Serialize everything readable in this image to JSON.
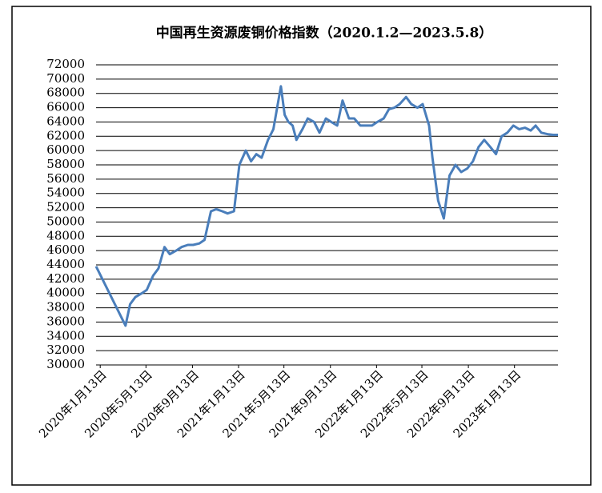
{
  "chart_data": {
    "type": "line",
    "title": "中国再生资源废铜价格指数（2020.1.2—2023.5.8）",
    "x": [
      "2020-01-02",
      "2020-03-20",
      "2020-04-01",
      "2020-04-15",
      "2020-05-01",
      "2020-05-15",
      "2020-06-01",
      "2020-06-15",
      "2020-07-01",
      "2020-07-15",
      "2020-08-01",
      "2020-08-15",
      "2020-09-01",
      "2020-09-15",
      "2020-10-01",
      "2020-10-15",
      "2020-11-01",
      "2020-11-15",
      "2020-12-01",
      "2020-12-15",
      "2021-01-01",
      "2021-01-15",
      "2021-02-01",
      "2021-02-15",
      "2021-03-01",
      "2021-03-15",
      "2021-04-01",
      "2021-04-15",
      "2021-05-05",
      "2021-05-15",
      "2021-05-25",
      "2021-06-05",
      "2021-06-15",
      "2021-07-01",
      "2021-07-15",
      "2021-08-01",
      "2021-08-15",
      "2021-09-01",
      "2021-09-15",
      "2021-10-01",
      "2021-10-15",
      "2021-11-01",
      "2021-11-15",
      "2021-12-01",
      "2021-12-15",
      "2022-01-01",
      "2022-01-15",
      "2022-02-01",
      "2022-02-15",
      "2022-03-01",
      "2022-03-15",
      "2022-04-01",
      "2022-04-15",
      "2022-05-01",
      "2022-05-15",
      "2022-06-01",
      "2022-06-10",
      "2022-06-25",
      "2022-07-10",
      "2022-07-25",
      "2022-08-10",
      "2022-08-25",
      "2022-09-10",
      "2022-09-25",
      "2022-10-10",
      "2022-10-25",
      "2022-11-10",
      "2022-11-25",
      "2022-12-10",
      "2022-12-25",
      "2023-01-10",
      "2023-01-25",
      "2023-02-10",
      "2023-02-25",
      "2023-03-10",
      "2023-03-25",
      "2023-04-10",
      "2023-04-25",
      "2023-05-08"
    ],
    "series": [
      {
        "name": "废铜价格指数",
        "color": "#4a7ebb",
        "values": [
          43800,
          35500,
          38500,
          39500,
          40000,
          40500,
          42500,
          43500,
          46500,
          45500,
          46000,
          46500,
          46800,
          46800,
          47000,
          47500,
          51500,
          51800,
          51500,
          51200,
          51500,
          58000,
          60000,
          58500,
          59500,
          59000,
          61500,
          63000,
          69000,
          65000,
          64000,
          63500,
          61500,
          63000,
          64500,
          64000,
          62500,
          64500,
          64000,
          63500,
          67000,
          64500,
          64500,
          63500,
          63500,
          63500,
          64000,
          64500,
          65800,
          66000,
          66500,
          67500,
          66500,
          66000,
          66500,
          63500,
          59000,
          53000,
          50500,
          56500,
          58000,
          57000,
          57500,
          58500,
          60500,
          61500,
          60500,
          59500,
          62000,
          62500,
          63500,
          63000,
          63200,
          62800,
          63500,
          62500,
          62300,
          62200,
          62200
        ]
      }
    ],
    "xlim": [
      "2020-01-02",
      "2023-05-08"
    ],
    "xticks": [
      {
        "value": "2020-01-13",
        "label": "2020年1月13日"
      },
      {
        "value": "2020-05-13",
        "label": "2020年5月13日"
      },
      {
        "value": "2020-09-13",
        "label": "2020年9月13日"
      },
      {
        "value": "2021-01-13",
        "label": "2021年1月13日"
      },
      {
        "value": "2021-05-13",
        "label": "2021年5月13日"
      },
      {
        "value": "2021-09-13",
        "label": "2021年9月13日"
      },
      {
        "value": "2022-01-13",
        "label": "2022年1月13日"
      },
      {
        "value": "2022-05-13",
        "label": "2022年5月13日"
      },
      {
        "value": "2022-09-13",
        "label": "2022年9月13日"
      },
      {
        "value": "2023-01-13",
        "label": "2023年1月13日"
      }
    ],
    "ylim": [
      30000,
      72000
    ],
    "yticks": [
      30000,
      32000,
      34000,
      36000,
      38000,
      40000,
      42000,
      44000,
      46000,
      48000,
      50000,
      52000,
      54000,
      56000,
      58000,
      60000,
      62000,
      64000,
      66000,
      68000,
      70000,
      72000
    ],
    "grid": true
  }
}
